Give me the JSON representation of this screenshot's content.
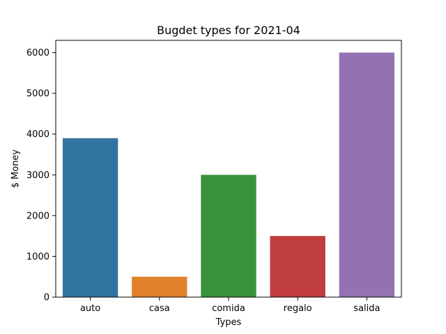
{
  "chart_data": {
    "type": "bar",
    "title": "Bugdet types for 2021-04",
    "xlabel": "Types",
    "ylabel": "$ Money",
    "categories": [
      "auto",
      "casa",
      "comida",
      "regalo",
      "salida"
    ],
    "values": [
      3900,
      500,
      3000,
      1500,
      6000
    ],
    "colors": [
      "#3274a1",
      "#e1812c",
      "#3a923a",
      "#c03d3e",
      "#9372b2"
    ],
    "ylim": [
      0,
      6300
    ],
    "yticks": [
      0,
      1000,
      2000,
      3000,
      4000,
      5000,
      6000
    ],
    "grid": false,
    "legend": "none"
  }
}
